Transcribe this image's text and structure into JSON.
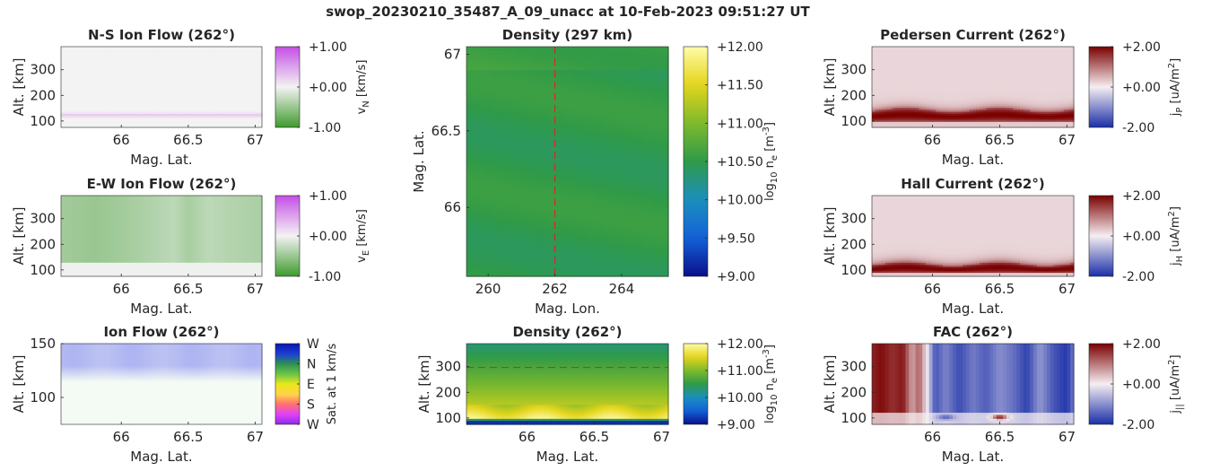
{
  "figure_title": "swop_20230210_35487_A_09_unacc at 10-Feb-2023 09:51:27 UT",
  "colors": {
    "green": "#3f9a2e",
    "white_mid": "#f3f3f3",
    "purple": "#c44fe6",
    "density_green": "#2f9a48",
    "current_red": "#7a0000",
    "current_blue": "#1a2fa8",
    "ref_line": "#d62728"
  },
  "chart_data": [
    {
      "id": "ns_ion_flow",
      "type": "heatmap",
      "title": "N-S Ion Flow (262°)",
      "xlabel": "Mag. Lat.",
      "ylabel": "Alt. [km]",
      "xticks": [
        "66",
        "66.5",
        "67"
      ],
      "yticks": [
        "100",
        "200",
        "300"
      ],
      "xlim": [
        65.55,
        67.05
      ],
      "ylim": [
        75,
        390
      ],
      "colorbar": {
        "label": "v_N [km/s]",
        "ticks": [
          "+1.00",
          "+0.00",
          "-1.00"
        ],
        "range": [
          -1,
          1
        ],
        "colormap": "green-white-purple"
      },
      "features": [
        {
          "description": "weak positive band",
          "alt": 125,
          "value": 0.25
        }
      ],
      "background_value": 0.0
    },
    {
      "id": "ew_ion_flow",
      "type": "heatmap",
      "title": "E-W Ion Flow (262°)",
      "xlabel": "Mag. Lat.",
      "ylabel": "Alt. [km]",
      "xticks": [
        "66",
        "66.5",
        "67"
      ],
      "yticks": [
        "100",
        "200",
        "300"
      ],
      "xlim": [
        65.55,
        67.05
      ],
      "ylim": [
        75,
        390
      ],
      "colorbar": {
        "label": "v_E [km/s]",
        "ticks": [
          "+1.00",
          "+0.00",
          "-1.00"
        ],
        "range": [
          -1,
          1
        ],
        "colormap": "green-white-purple"
      },
      "lat_profile": {
        "lat": [
          65.55,
          65.8,
          66.0,
          66.2,
          66.4,
          66.5,
          66.65,
          66.8,
          67.05
        ],
        "value": [
          -0.45,
          -0.5,
          -0.45,
          -0.38,
          -0.3,
          -0.42,
          -0.3,
          -0.35,
          -0.4
        ]
      },
      "below_alt": 130
    },
    {
      "id": "ion_flow_direction",
      "type": "heatmap",
      "title": "Ion Flow (262°)",
      "xlabel": "Mag. Lat.",
      "ylabel": "Alt. [km]",
      "xticks": [
        "66",
        "66.5",
        "67"
      ],
      "yticks": [
        "100",
        "150"
      ],
      "xlim": [
        65.55,
        67.05
      ],
      "ylim": [
        75,
        150
      ],
      "colorbar": {
        "label": "Sat. at 1 km/s",
        "ticks": [
          "W",
          "N",
          "E",
          "S",
          "W"
        ],
        "colormap": "direction-wheel"
      },
      "dominant_direction": "W",
      "fade_alt": [
        115,
        130
      ]
    },
    {
      "id": "density_map",
      "type": "heatmap",
      "title": "Density (297 km)",
      "xlabel": "Mag. Lon.",
      "ylabel": "Mag. Lat.",
      "xticks": [
        "260",
        "262",
        "264"
      ],
      "yticks": [
        "66",
        "66.5",
        "67"
      ],
      "xlim": [
        259.35,
        265.4
      ],
      "ylim": [
        65.55,
        67.05
      ],
      "colorbar": {
        "label": "log10 n_e [m^-3]",
        "ticks": [
          "+12.00",
          "+11.50",
          "+11.00",
          "+10.50",
          "+10.00",
          "+9.50",
          "+9.00"
        ],
        "range": [
          9,
          12
        ],
        "colormap": "parula"
      },
      "reference_line": {
        "axis": "x",
        "value": 262
      },
      "value_range": [
        10.3,
        10.7
      ]
    },
    {
      "id": "density_profile",
      "type": "heatmap",
      "title": "Density (262°)",
      "xlabel": "Mag. Lat.",
      "ylabel": "Alt. [km]",
      "xticks": [
        "66",
        "66.5",
        "67"
      ],
      "yticks": [
        "100",
        "200",
        "300"
      ],
      "xlim": [
        65.55,
        67.05
      ],
      "ylim": [
        75,
        390
      ],
      "colorbar": {
        "label": "log10 n_e [m^-3]",
        "ticks": [
          "+12.00",
          "+11.00",
          "+10.00",
          "+9.00"
        ],
        "range": [
          9,
          12
        ],
        "colormap": "parula"
      },
      "reference_line": {
        "axis": "y",
        "value": 297
      },
      "peak": {
        "alt": 150,
        "value": 11.3
      }
    },
    {
      "id": "pedersen_current",
      "type": "heatmap",
      "title": "Pedersen Current (262°)",
      "xlabel": "Mag. Lat.",
      "ylabel": "Alt. [km]",
      "xticks": [
        "66",
        "66.5",
        "67"
      ],
      "yticks": [
        "100",
        "200",
        "300"
      ],
      "xlim": [
        65.55,
        67.05
      ],
      "ylim": [
        75,
        390
      ],
      "colorbar": {
        "label": "j_P [uA/m^2]",
        "ticks": [
          "+2.00",
          "+0.00",
          "-2.00"
        ],
        "range": [
          -2,
          2
        ],
        "colormap": "blue-white-red"
      },
      "band": {
        "alt_top": 145,
        "alt_bottom": 100,
        "value": 2.0
      },
      "background_value": 0.2
    },
    {
      "id": "hall_current",
      "type": "heatmap",
      "title": "Hall Current (262°)",
      "xlabel": "Mag. Lat.",
      "ylabel": "Alt. [km]",
      "xticks": [
        "66",
        "66.5",
        "67"
      ],
      "yticks": [
        "100",
        "200",
        "300"
      ],
      "xlim": [
        65.55,
        67.05
      ],
      "ylim": [
        75,
        390
      ],
      "colorbar": {
        "label": "j_H [uA/m^2]",
        "ticks": [
          "+2.00",
          "+0.00",
          "-2.00"
        ],
        "range": [
          -2,
          2
        ],
        "colormap": "blue-white-red"
      },
      "band": {
        "alt_top": 125,
        "alt_bottom": 90,
        "value": 2.0
      },
      "background_value": 0.2
    },
    {
      "id": "fac",
      "type": "heatmap",
      "title": "FAC (262°)",
      "xlabel": "Mag. Lat.",
      "ylabel": "Alt. [km]",
      "xticks": [
        "66",
        "66.5",
        "67"
      ],
      "yticks": [
        "100",
        "200",
        "300"
      ],
      "xlim": [
        65.55,
        67.05
      ],
      "ylim": [
        75,
        390
      ],
      "colorbar": {
        "label": "j_|| [uA/m^2]",
        "ticks": [
          "+2.00",
          "+0.00",
          "-2.00"
        ],
        "range": [
          -2,
          2
        ],
        "colormap": "blue-white-red"
      },
      "lat_profile": {
        "lat": [
          65.55,
          65.62,
          65.7,
          65.78,
          65.85,
          65.9,
          65.95,
          66.02,
          66.1,
          66.2,
          66.3,
          66.4,
          66.5,
          66.6,
          66.7,
          66.8,
          66.9,
          67.0,
          67.05
        ],
        "value": [
          1.7,
          1.9,
          1.6,
          1.8,
          0.6,
          1.2,
          0.2,
          -1.6,
          -1.1,
          -1.7,
          -1.2,
          -1.5,
          -1.0,
          -1.3,
          -1.8,
          -0.9,
          -1.6,
          -1.9,
          -1.2
        ]
      },
      "low_alt_features": [
        {
          "lat": 66.5,
          "alt": 105,
          "value": 2.0
        },
        {
          "lat": 66.1,
          "alt": 105,
          "value": -1.2
        }
      ]
    }
  ]
}
